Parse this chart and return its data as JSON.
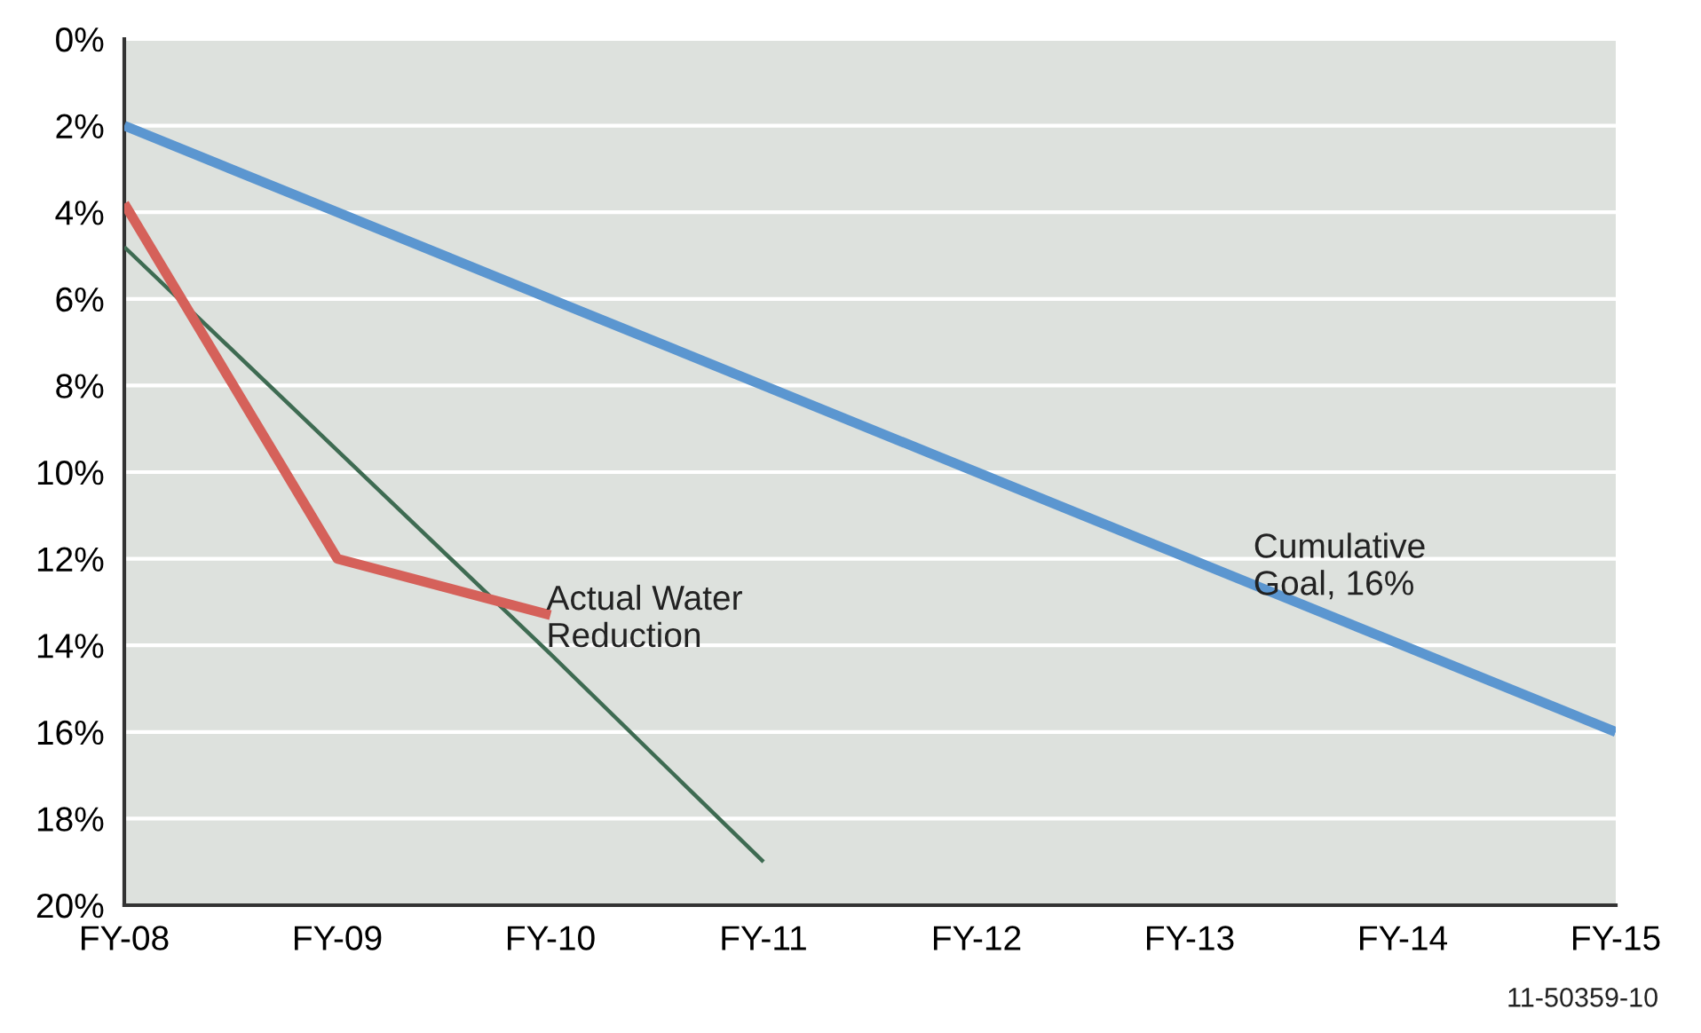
{
  "chart_data": {
    "type": "line",
    "categories": [
      "FY-08",
      "FY-09",
      "FY-10",
      "FY-11",
      "FY-12",
      "FY-13",
      "FY-14",
      "FY-15"
    ],
    "ylim": [
      20,
      0
    ],
    "yticks": [
      {
        "value": 0,
        "label": "0%"
      },
      {
        "value": 2,
        "label": "2%"
      },
      {
        "value": 4,
        "label": "4%"
      },
      {
        "value": 6,
        "label": "6%"
      },
      {
        "value": 8,
        "label": "8%"
      },
      {
        "value": 10,
        "label": "10%"
      },
      {
        "value": 12,
        "label": "12%"
      },
      {
        "value": 14,
        "label": "14%"
      },
      {
        "value": 16,
        "label": "16%"
      },
      {
        "value": 18,
        "label": "18%"
      },
      {
        "value": 20,
        "label": "20%"
      }
    ],
    "grid": "y",
    "series": [
      {
        "color": "#5b96d0",
        "values": [
          2,
          4,
          6,
          8,
          10,
          12,
          14,
          16
        ]
      },
      {
        "color": "#3e6b52",
        "values": [
          4.8,
          9.5,
          14.2,
          19.0,
          null,
          null,
          null,
          null
        ]
      },
      {
        "color": "#d5615a",
        "values": [
          3.8,
          12.0,
          13.3,
          null,
          null,
          null,
          null,
          null
        ]
      }
    ],
    "annotations": [
      "Cumulative\nGoal, 16%",
      "Actual Water\nReduction",
      "11-50359-10"
    ]
  }
}
